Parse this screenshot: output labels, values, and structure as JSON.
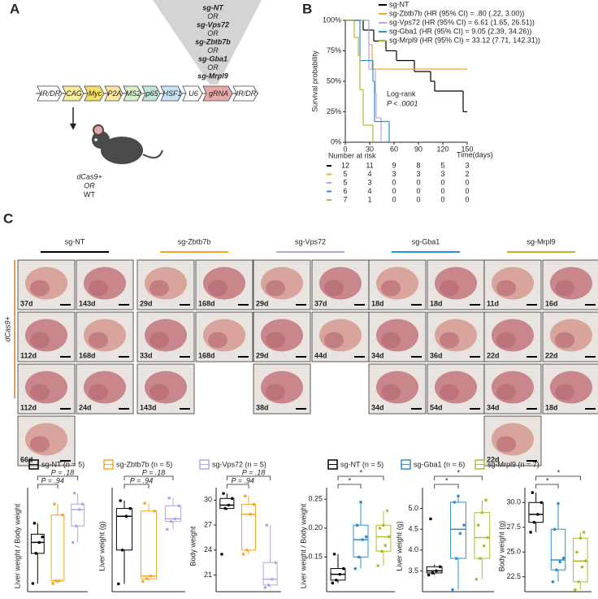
{
  "panel_labels": [
    "A",
    "B",
    "C"
  ],
  "panel_a": {
    "guides": [
      "sg-NT",
      "OR",
      "sg-Vps72",
      "OR",
      "sg-Zbtb7b",
      "OR",
      "sg-Gba1",
      "OR",
      "sg-Mrpl9"
    ],
    "construct": [
      {
        "label": "IR/DR",
        "color": "#ffffff"
      },
      {
        "label": "CAG",
        "color": "#f6ec9a"
      },
      {
        "label": "Myc",
        "color": "#f3df6a"
      },
      {
        "label": "P2A",
        "color": "#f7e7a0"
      },
      {
        "label": "MS2",
        "color": "#d9f0c8"
      },
      {
        "label": "p65",
        "color": "#bfe6d8"
      },
      {
        "label": "HSF1",
        "color": "#c9e3f5"
      },
      {
        "label": "U6",
        "color": "#ffffff"
      },
      {
        "label": "gRNA",
        "color": "#e8a9a9"
      },
      {
        "label": "IR/DR",
        "color": "#ffffff"
      }
    ],
    "mouse_labels": [
      "dCas9+",
      "OR",
      "WT"
    ]
  },
  "chart_data": [
    {
      "type": "survival",
      "ylabel": "Survival probability",
      "xlabel": "Time(days)",
      "xlim": [
        0,
        150
      ],
      "xticks": [
        0,
        30,
        60,
        90,
        120,
        150
      ],
      "ylim": [
        0,
        100
      ],
      "yticks": [
        {
          "value": 0,
          "label": "0%"
        },
        {
          "value": 25,
          "label": "25%"
        },
        {
          "value": 50,
          "label": "50%"
        },
        {
          "value": 75,
          "label": "75%"
        },
        {
          "value": 100,
          "label": "100%"
        }
      ],
      "annotations": [
        "Log-rank",
        "P < .0001"
      ],
      "series": [
        {
          "name": "sg-NT",
          "color": "#000000",
          "x": [
            0,
            22,
            35,
            50,
            63,
            85,
            105,
            110,
            145
          ],
          "values": [
            100,
            92,
            83,
            75,
            67,
            58,
            50,
            42,
            25
          ]
        },
        {
          "name": "sg-Zbtb7b (HR (95% CI) = .80 (.22, 3.00))",
          "color": "#f5a623",
          "x": [
            0,
            29,
            33
          ],
          "values": [
            100,
            80,
            60
          ]
        },
        {
          "name": "sg-Vps72 (HR (95% CI) = 6.61 (1.65, 26.51))",
          "color": "#b3a4e8",
          "x": [
            0,
            29,
            37,
            38,
            44
          ],
          "values": [
            100,
            60,
            40,
            20,
            0
          ]
        },
        {
          "name": "sg-Gba1 (HR (95% CI) = 9.05 (2.39, 34.26))",
          "color": "#2b8fd4",
          "x": [
            0,
            18,
            34,
            36,
            54
          ],
          "values": [
            100,
            67,
            50,
            17,
            0
          ]
        },
        {
          "name": "sg-Mrpl9 (HR (95% CI) = 33.12 (7.71, 142.31))",
          "color": "#b5b82d",
          "x": [
            0,
            11,
            16,
            18,
            22,
            34
          ],
          "values": [
            100,
            86,
            71,
            43,
            14,
            0
          ]
        }
      ],
      "risk_table": {
        "title": "Number at risk",
        "rows": [
          [
            12,
            11,
            9,
            8,
            5,
            3
          ],
          [
            5,
            4,
            3,
            3,
            3,
            2
          ],
          [
            5,
            3,
            0,
            0,
            0,
            0
          ],
          [
            6,
            4,
            0,
            0,
            0,
            0
          ],
          [
            7,
            1,
            0,
            0,
            0,
            0
          ]
        ]
      }
    },
    {
      "type": "box",
      "ylabel": "Liver weight / Body weight",
      "ylim": [
        0.03,
        0.22
      ],
      "groups": [
        {
          "color": "#000000",
          "min": 0.045,
          "q1": 0.1,
          "median": 0.12,
          "q3": 0.135,
          "max": 0.155,
          "points": [
            0.045,
            0.1,
            0.12,
            0.13,
            0.155
          ]
        },
        {
          "color": "#f5a623",
          "min": 0.045,
          "q1": 0.05,
          "median": 0.05,
          "q3": 0.17,
          "max": 0.19,
          "points": [
            0.045,
            0.05,
            0.05,
            0.17,
            0.19
          ]
        },
        {
          "color": "#b3a4e8",
          "min": 0.12,
          "q1": 0.15,
          "median": 0.18,
          "q3": 0.19,
          "max": 0.21,
          "points": [
            0.12,
            0.15,
            0.18,
            0.19,
            0.21
          ]
        }
      ],
      "annotations": [
        "P = .94",
        "P = .18"
      ]
    },
    {
      "type": "box",
      "ylabel": "Liver weight (g)",
      "ylim": [
        1.0,
        5.0
      ],
      "groups": [
        {
          "color": "#000000",
          "min": 1.3,
          "q1": 2.6,
          "median": 3.9,
          "q3": 4.2,
          "max": 4.5,
          "points": [
            1.3,
            2.6,
            3.9,
            4.2,
            4.5
          ]
        },
        {
          "color": "#f5a623",
          "min": 1.4,
          "q1": 1.5,
          "median": 1.6,
          "q3": 4.1,
          "max": 4.4,
          "points": [
            1.4,
            1.5,
            1.6,
            4.1,
            4.4
          ]
        },
        {
          "color": "#b3a4e8",
          "min": 3.4,
          "q1": 3.7,
          "median": 3.8,
          "q3": 4.3,
          "max": 4.6,
          "points": [
            3.4,
            3.7,
            3.8,
            4.3,
            4.6
          ]
        }
      ],
      "annotations": [
        "P = .94",
        "P = .18"
      ]
    },
    {
      "type": "box",
      "ylabel": "Body weight",
      "ylim": [
        19,
        31.5
      ],
      "yticks": [
        21,
        24,
        27,
        30
      ],
      "groups": [
        {
          "color": "#000000",
          "min": 28.8,
          "q1": 29.0,
          "median": 29.4,
          "q3": 30.2,
          "max": 30.8,
          "points": [
            23.5,
            29.0,
            29.4,
            30.2,
            30.8
          ]
        },
        {
          "color": "#f5a623",
          "min": 23.5,
          "q1": 24.0,
          "median": 28.3,
          "q3": 29.5,
          "max": 30.5,
          "points": [
            23.5,
            24.0,
            28.3,
            29.5,
            30.5
          ]
        },
        {
          "color": "#b3a4e8",
          "min": 19.5,
          "q1": 19.8,
          "median": 20.5,
          "q3": 22.5,
          "max": 27.0,
          "points": [
            19.5,
            19.8,
            20.5,
            22.5,
            27.0
          ]
        }
      ],
      "annotations": [
        "P = .94",
        "P = .18"
      ]
    },
    {
      "type": "box",
      "ylabel": "Liver weight / Body weight",
      "ylim": [
        0.09,
        0.27
      ],
      "yticks": [
        0.15,
        {
          "value": 0.2,
          "label": "0.20"
        },
        0.25
      ],
      "groups": [
        {
          "color": "#000000",
          "min": 0.105,
          "q1": 0.11,
          "median": 0.12,
          "q3": 0.13,
          "max": 0.155,
          "points": [
            0.105,
            0.11,
            0.12,
            0.13,
            0.155
          ]
        },
        {
          "color": "#2b8fd4",
          "min": 0.13,
          "q1": 0.15,
          "median": 0.18,
          "q3": 0.205,
          "max": 0.245,
          "points": [
            0.13,
            0.15,
            0.18,
            0.185,
            0.205,
            0.245
          ]
        },
        {
          "color": "#b5b82d",
          "min": 0.135,
          "q1": 0.16,
          "median": 0.185,
          "q3": 0.205,
          "max": 0.23,
          "points": [
            0.135,
            0.16,
            0.17,
            0.185,
            0.2,
            0.205,
            0.23
          ]
        }
      ],
      "annotations": [
        "*",
        "*"
      ]
    },
    {
      "type": "box",
      "ylabel": "Liver weight (g)",
      "ylim": [
        3.0,
        5.5
      ],
      "yticks": [
        3.5,
        {
          "value": 4,
          "label": "4.0"
        },
        4.5,
        {
          "value": 5,
          "label": "5.0"
        }
      ],
      "groups": [
        {
          "color": "#000000",
          "min": 3.4,
          "q1": 3.45,
          "median": 3.5,
          "q3": 3.6,
          "max": 3.65,
          "points": [
            3.4,
            3.45,
            3.5,
            3.6,
            4.75
          ]
        },
        {
          "color": "#2b8fd4",
          "min": 3.05,
          "q1": 3.8,
          "median": 4.5,
          "q3": 5.15,
          "max": 5.3,
          "points": [
            3.05,
            3.8,
            4.4,
            4.6,
            5.15,
            5.3
          ]
        },
        {
          "color": "#b5b82d",
          "min": 3.3,
          "q1": 3.8,
          "median": 4.3,
          "q3": 4.9,
          "max": 5.2,
          "points": [
            3.3,
            3.8,
            4.1,
            4.3,
            4.6,
            4.9,
            5.2
          ]
        }
      ],
      "annotations": [
        "*",
        "*"
      ]
    },
    {
      "type": "box",
      "ylabel": "Body weight (g)",
      "ylim": [
        21,
        31.5
      ],
      "yticks": [
        22.5,
        {
          "value": 25,
          "label": "25.0"
        },
        27.5,
        {
          "value": 30,
          "label": "30.0"
        }
      ],
      "groups": [
        {
          "color": "#000000",
          "min": 27,
          "q1": 28,
          "median": 28.8,
          "q3": 30,
          "max": 31,
          "points": [
            27,
            28,
            28.8,
            30,
            31
          ]
        },
        {
          "color": "#2b8fd4",
          "min": 22,
          "q1": 23.2,
          "median": 24.2,
          "q3": 27.3,
          "max": 29.9,
          "points": [
            22,
            23.2,
            24,
            24.4,
            27.3,
            29.9
          ]
        },
        {
          "color": "#b5b82d",
          "min": 21.2,
          "q1": 22,
          "median": 24.1,
          "q3": 26.4,
          "max": 27,
          "points": [
            21.2,
            22,
            23.5,
            24.1,
            25,
            26.4,
            27
          ]
        }
      ],
      "annotations": [
        "*",
        "*"
      ]
    }
  ],
  "legends": [
    [
      {
        "name": "sg-NT (n = 5)",
        "color": "#000000"
      },
      {
        "name": "sg-Zbtb7b (n = 5)",
        "color": "#f5a623"
      },
      {
        "name": "sg-Vps72 (n = 5)",
        "color": "#b3a4e8"
      }
    ],
    [
      {
        "name": "sg-NT (n = 5)",
        "color": "#000000"
      },
      {
        "name": "sg-Gba1 (n = 6)",
        "color": "#2b8fd4"
      },
      {
        "name": "sg-Mrpl9 (n = 7)",
        "color": "#b5b82d"
      }
    ]
  ],
  "panel_c": {
    "side_label": "dCas9+",
    "side_color": "#e87722",
    "columns": [
      {
        "title": "sg-NT",
        "color": "#000000",
        "photos": [
          "37d",
          "143d",
          "112d",
          "168d",
          "112d",
          "24d",
          "66d"
        ]
      },
      {
        "title": "sg-Zbtb7b",
        "color": "#f5a623",
        "photos": [
          "29d",
          "168d",
          "33d",
          "168d",
          "143d"
        ]
      },
      {
        "title": "sg-Vps72",
        "color": "#b3a4e8",
        "photos": [
          "29d",
          "37d",
          "29d",
          "44d",
          "38d"
        ]
      },
      {
        "title": "sg-Gba1",
        "color": "#2b8fd4",
        "photos": [
          "18d",
          "18d",
          "34d",
          "36d",
          "34d",
          "54d"
        ]
      },
      {
        "title": "sg-Mrpl9",
        "color": "#b5b82d",
        "photos": [
          "11d",
          "16d",
          "22d",
          "22d",
          "34d",
          "18d",
          "22d"
        ]
      }
    ]
  }
}
